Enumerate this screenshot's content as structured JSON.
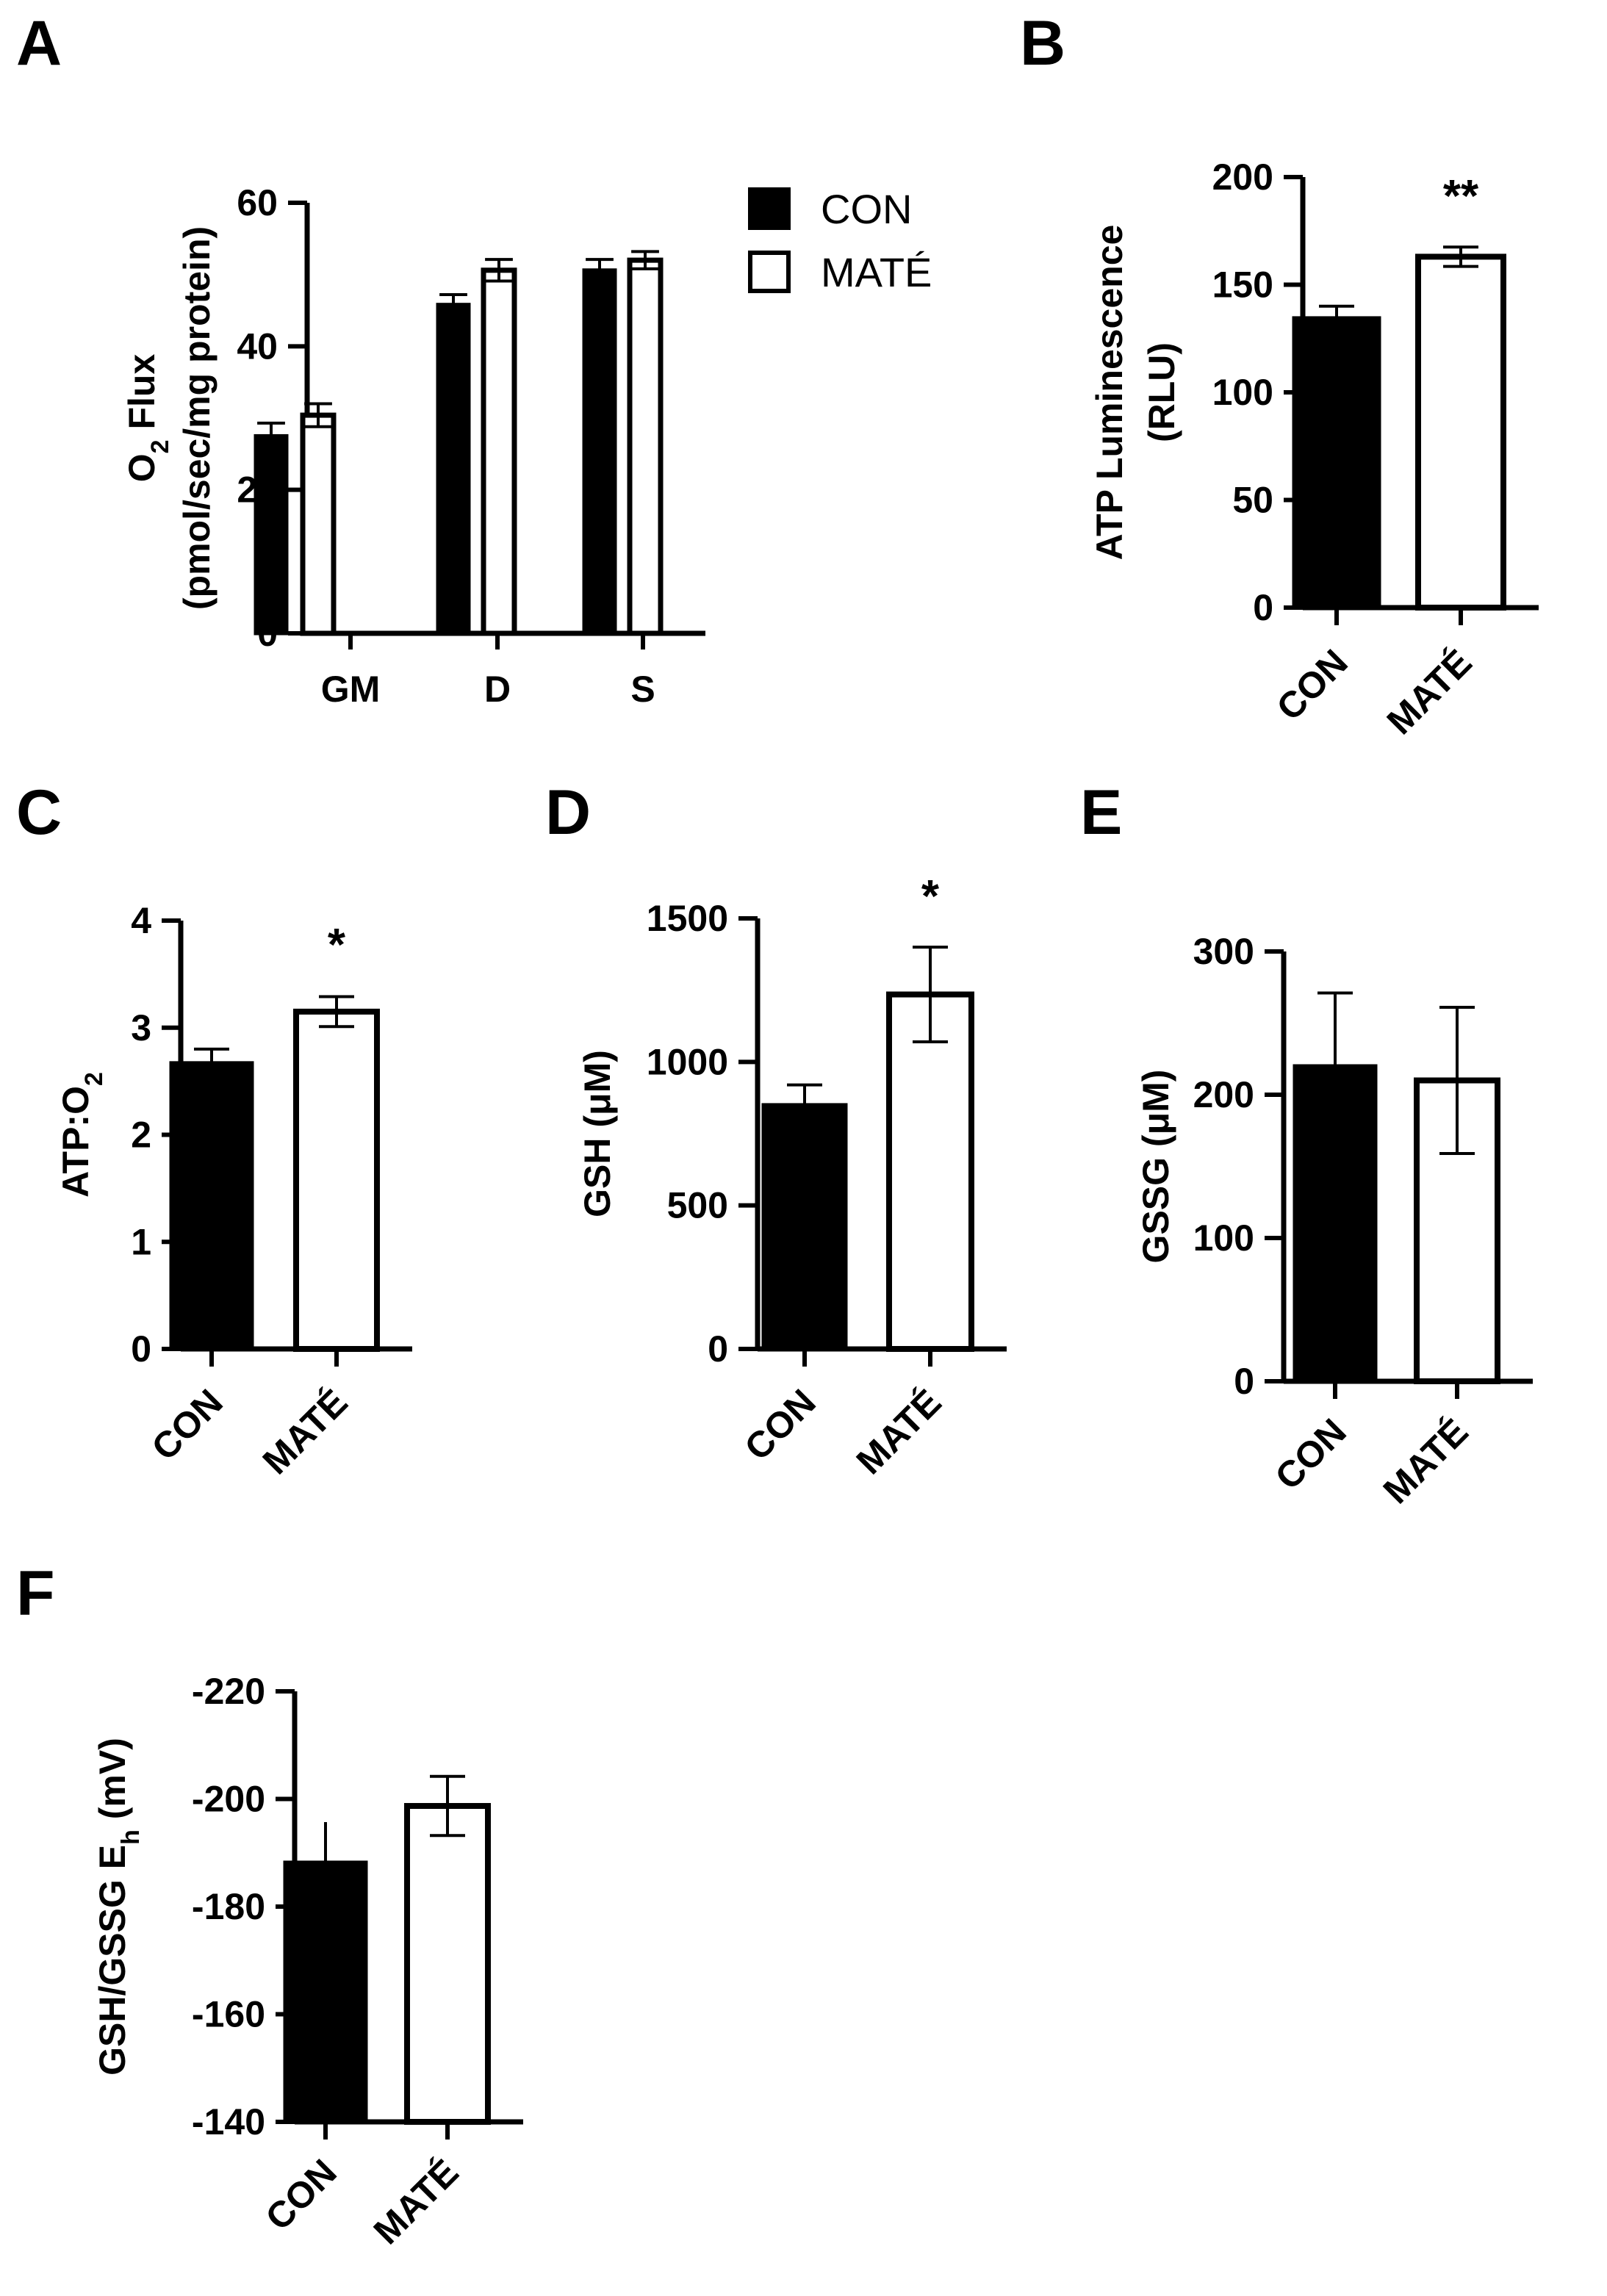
{
  "colors": {
    "con_fill": "#000000",
    "mate_fill": "#ffffff",
    "stroke": "#000000"
  },
  "chart_data": [
    {
      "panel": "A",
      "type": "bar",
      "ylabel_line1": "O",
      "ylabel_sub": "2",
      "ylabel_line1_rest": " Flux",
      "ylabel_line2": "(pmol/sec/mg protein)",
      "categories": [
        "GM",
        "D",
        "S"
      ],
      "series": [
        {
          "name": "CON",
          "values": [
            27.5,
            45.8,
            50.6
          ],
          "errors": [
            1.8,
            1.4,
            1.5
          ]
        },
        {
          "name": "MATÉ",
          "values": [
            30.4,
            50.6,
            52.0
          ],
          "errors": [
            1.6,
            1.5,
            1.2
          ]
        }
      ],
      "ylim": [
        0,
        60
      ],
      "yticks": [
        0,
        20,
        40,
        60
      ],
      "legend": "top-right",
      "significance": [
        "",
        "",
        ""
      ]
    },
    {
      "panel": "B",
      "type": "bar",
      "ylabel_line1": "ATP Luminescence",
      "ylabel_line2": "(RLU)",
      "categories": [
        "CON",
        "MATÉ"
      ],
      "values": [
        134.5,
        163.0
      ],
      "errors": [
        5.5,
        4.5
      ],
      "ylim": [
        0,
        200
      ],
      "yticks": [
        0,
        50,
        100,
        150,
        200
      ],
      "significance": [
        "",
        "**"
      ]
    },
    {
      "panel": "C",
      "type": "bar",
      "ylabel_line1": "ATP:O",
      "ylabel_sub": "2",
      "categories": [
        "CON",
        "MATÉ"
      ],
      "values": [
        2.67,
        3.15
      ],
      "errors": [
        0.13,
        0.14
      ],
      "ylim": [
        0,
        4
      ],
      "yticks": [
        0,
        1,
        2,
        3,
        4
      ],
      "significance": [
        "",
        "*"
      ]
    },
    {
      "panel": "D",
      "type": "bar",
      "ylabel_line1": "GSH (μM)",
      "categories": [
        "CON",
        "MATÉ"
      ],
      "values": [
        850,
        1235
      ],
      "errors": [
        70,
        165
      ],
      "ylim": [
        0,
        1500
      ],
      "yticks": [
        0,
        500,
        1000,
        1500
      ],
      "significance": [
        "",
        "*"
      ]
    },
    {
      "panel": "E",
      "type": "bar",
      "ylabel_line1": "GSSG (μM)",
      "categories": [
        "CON",
        "MATÉ"
      ],
      "values": [
        220,
        210
      ],
      "errors": [
        51,
        51
      ],
      "ylim": [
        0,
        300
      ],
      "yticks": [
        0,
        100,
        200,
        300
      ],
      "significance": [
        "",
        ""
      ]
    },
    {
      "panel": "F",
      "type": "bar",
      "ylabel_line1": "GSH/GSSG E",
      "ylabel_sub": "h",
      "ylabel_line1_rest": " (mV)",
      "categories": [
        "CON",
        "MATÉ"
      ],
      "values": [
        -188.2,
        -198.7
      ],
      "errors": [
        7.5,
        5.5
      ],
      "ylim": [
        -140,
        -220
      ],
      "ytick_labels": [
        "-140",
        "-160",
        "-180",
        "-200",
        "-220"
      ],
      "yticks": [
        -140,
        -160,
        -180,
        -200,
        -220
      ],
      "significance": [
        "",
        ""
      ]
    }
  ]
}
